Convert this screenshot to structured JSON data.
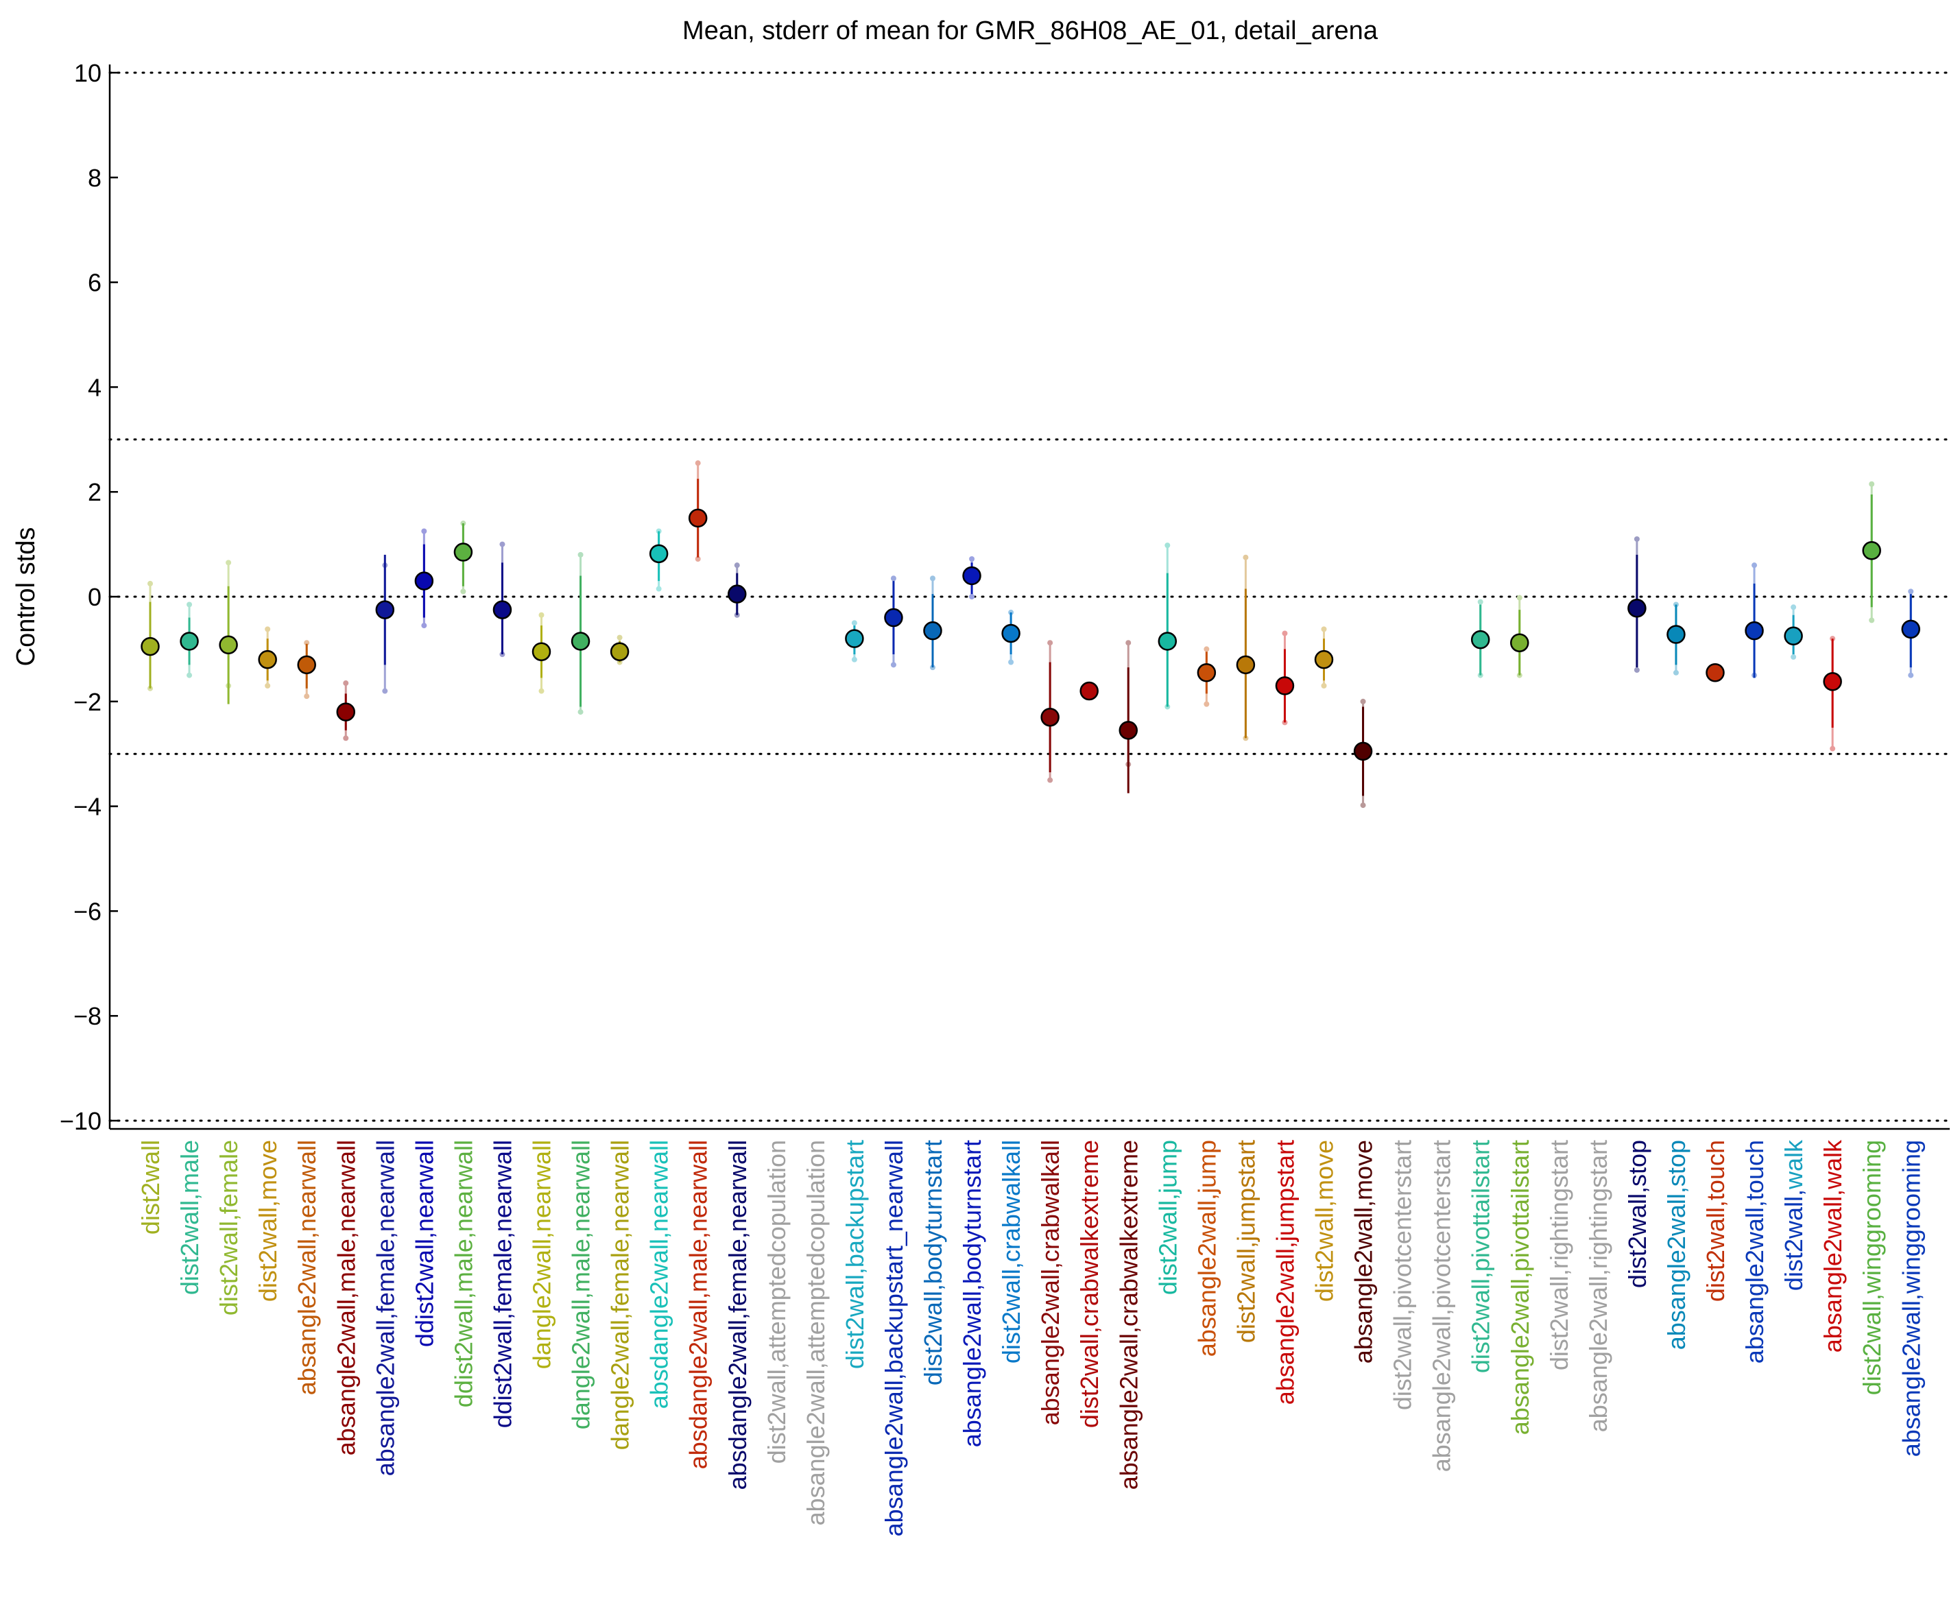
{
  "chart_data": {
    "type": "scatter",
    "title": "Mean, stderr of mean for GMR_86H08_AE_01, detail_arena",
    "ylabel": "Control stds",
    "xlabel": "",
    "ylim": [
      -10,
      10
    ],
    "yticks": [
      -10,
      -8,
      -6,
      -4,
      -2,
      0,
      2,
      4,
      6,
      8,
      10
    ],
    "ytick_labels": [
      "−10",
      "−8",
      "−6",
      "−4",
      "−2",
      "0",
      "2",
      "4",
      "6",
      "8",
      "10"
    ],
    "reference_lines": [
      10,
      3,
      0,
      -3,
      -10
    ],
    "grid": false,
    "categories": [
      {
        "segments": [
          [
            "dist2wall",
            "#a0b020"
          ]
        ]
      },
      {
        "segments": [
          [
            "dist2wall,male",
            "#30b890"
          ]
        ]
      },
      {
        "segments": [
          [
            "dist2wall,female",
            "#90b830"
          ]
        ]
      },
      {
        "segments": [
          [
            "dist2wall,move",
            "#c09010"
          ]
        ]
      },
      {
        "segments": [
          [
            "absangle2wall,nearwall",
            "#c05a08"
          ]
        ]
      },
      {
        "segments": [
          [
            "absangle2wall,male,nearwall",
            "#8a0000"
          ]
        ]
      },
      {
        "segments": [
          [
            "absangle2wall,female,nearwall",
            "#101898"
          ]
        ]
      },
      {
        "segments": [
          [
            "ddist2wall,nearwall",
            "#0808b0"
          ]
        ]
      },
      {
        "segments": [
          [
            "ddist2wall,male,nearwall",
            "#5cb040"
          ]
        ]
      },
      {
        "segments": [
          [
            "ddist2wall,female,nearwall",
            "#0a0a88"
          ]
        ]
      },
      {
        "segments": [
          [
            "dangle2wall,nearwall",
            "#b0b010"
          ]
        ]
      },
      {
        "segments": [
          [
            "dangle2wall,male,nearwall",
            "#40b060"
          ]
        ]
      },
      {
        "segments": [
          [
            "dangle2wall,female,nearwall",
            "#a8a010"
          ]
        ]
      },
      {
        "segments": [
          [
            "absdangle2wall,nearwall",
            "#18c0b8"
          ]
        ]
      },
      {
        "segments": [
          [
            "absdangle2wall,male,nearwall",
            "#c02808"
          ]
        ]
      },
      {
        "segments": [
          [
            "absdangle2wall,female,nearwall",
            "#08086a"
          ]
        ]
      },
      {
        "segments": [
          [
            "dist2wall,attemptedcopulation",
            "#a0a0a0"
          ]
        ]
      },
      {
        "segments": [
          [
            "absangle2wall,attemptedcopulation",
            "#a0a0a0"
          ]
        ]
      },
      {
        "segments": [
          [
            "dist2wall,backupstart",
            "#18a8c0"
          ]
        ]
      },
      {
        "segments": [
          [
            "absangle2wall,backupstart_nearwall",
            "#0828b0"
          ]
        ]
      },
      {
        "segments": [
          [
            "dist2wall,bodyturnstart",
            "#0868b8"
          ]
        ]
      },
      {
        "segments": [
          [
            "absangle2wall,bodyturnstart",
            "#0818b8"
          ]
        ]
      },
      {
        "segments": [
          [
            "dist2wall,crabwalkall",
            "#0878c8"
          ]
        ]
      },
      {
        "segments": [
          [
            "absangle2wall,crabwalkall",
            "#880808"
          ]
        ]
      },
      {
        "segments": [
          [
            "dist2wall,crabwalkextreme",
            "#b00808"
          ]
        ]
      },
      {
        "segments": [
          [
            "absangle2wall,crabwalkextreme",
            "#6a0000"
          ]
        ]
      },
      {
        "segments": [
          [
            "dist2wall,jump",
            "#18b8a0"
          ]
        ]
      },
      {
        "segments": [
          [
            "absangle2wall,jump",
            "#c85008"
          ]
        ]
      },
      {
        "segments": [
          [
            "dist2wall,jumpstart",
            "#b87808"
          ]
        ]
      },
      {
        "segments": [
          [
            "absangle2wall,jumpstart",
            "#c80808"
          ]
        ]
      },
      {
        "segments": [
          [
            "dist2wall,move",
            "#c09010"
          ]
        ]
      },
      {
        "segments": [
          [
            "absangle2wall,move",
            "#500000"
          ]
        ]
      },
      {
        "segments": [
          [
            "dist2wall,pivotcenterstart",
            "#a0a0a0"
          ]
        ]
      },
      {
        "segments": [
          [
            "absangle2wall,pivotcenterstart",
            "#a0a0a0"
          ]
        ]
      },
      {
        "segments": [
          [
            "dist2wall,pivottailstart",
            "#30b890"
          ]
        ]
      },
      {
        "segments": [
          [
            "absangle2wall,pivottailstart",
            "#78b030"
          ]
        ]
      },
      {
        "segments": [
          [
            "dist2wall,rightingstart",
            "#a0a0a0"
          ]
        ]
      },
      {
        "segments": [
          [
            "absangle2wall,rightingstart",
            "#a0a0a0"
          ]
        ]
      },
      {
        "segments": [
          [
            "dist2wall,",
            "#08086a"
          ],
          [
            "stop",
            "#08086a"
          ]
        ]
      },
      {
        "segments": [
          [
            "absangle2wall,stop",
            "#0888b8"
          ]
        ]
      },
      {
        "segments": [
          [
            "dist2wall,",
            "#c03008"
          ],
          [
            "touch",
            "#c03008"
          ]
        ]
      },
      {
        "segments": [
          [
            "absangle2wall,touch",
            "#0838b8"
          ]
        ]
      },
      {
        "segments": [
          [
            "dist2wall,",
            "#0838b8"
          ],
          [
            "walk",
            "#18a0c0"
          ]
        ]
      },
      {
        "segments": [
          [
            "absangle2wall,",
            "#c80808"
          ],
          [
            "walk",
            "#c80808"
          ]
        ]
      },
      {
        "segments": [
          [
            "dist2wall,",
            "#58b040"
          ],
          [
            "winggrooming",
            "#58b040"
          ]
        ]
      },
      {
        "segments": [
          [
            "absangle2wall,winggrooming",
            "#0838b8"
          ]
        ]
      }
    ],
    "points": [
      {
        "mean": -0.95,
        "lo": -1.75,
        "hi": -0.1,
        "dlo": -1.75,
        "dhi": 0.25,
        "color": "#a0b020"
      },
      {
        "mean": -0.85,
        "lo": -1.3,
        "hi": -0.4,
        "dlo": -1.5,
        "dhi": -0.15,
        "color": "#30b890"
      },
      {
        "mean": -0.92,
        "lo": -2.05,
        "hi": 0.2,
        "dlo": -1.7,
        "dhi": 0.65,
        "color": "#90b830"
      },
      {
        "mean": -1.2,
        "lo": -1.6,
        "hi": -0.8,
        "dlo": -1.7,
        "dhi": -0.62,
        "color": "#c09010"
      },
      {
        "mean": -1.3,
        "lo": -1.75,
        "hi": -0.9,
        "dlo": -1.9,
        "dhi": -0.88,
        "color": "#c05a08"
      },
      {
        "mean": -2.2,
        "lo": -2.55,
        "hi": -1.85,
        "dlo": -2.7,
        "dhi": -1.65,
        "color": "#8a0000"
      },
      {
        "mean": -0.25,
        "lo": -1.3,
        "hi": 0.8,
        "dlo": -1.8,
        "dhi": 0.6,
        "color": "#101898"
      },
      {
        "mean": 0.3,
        "lo": -0.4,
        "hi": 1.0,
        "dlo": -0.55,
        "dhi": 1.25,
        "color": "#0808b0"
      },
      {
        "mean": 0.85,
        "lo": 0.2,
        "hi": 1.4,
        "dlo": 0.1,
        "dhi": 1.4,
        "color": "#5cb040"
      },
      {
        "mean": -0.25,
        "lo": -1.1,
        "hi": 0.65,
        "dlo": -1.1,
        "dhi": 1.0,
        "color": "#0a0a88"
      },
      {
        "mean": -1.05,
        "lo": -1.55,
        "hi": -0.55,
        "dlo": -1.8,
        "dhi": -0.35,
        "color": "#b0b010"
      },
      {
        "mean": -0.85,
        "lo": -2.1,
        "hi": 0.4,
        "dlo": -2.2,
        "dhi": 0.8,
        "color": "#40b060"
      },
      {
        "mean": -1.05,
        "lo": -1.25,
        "hi": -0.85,
        "dlo": -1.25,
        "dhi": -0.78,
        "color": "#a8a010"
      },
      {
        "mean": 0.82,
        "lo": 0.3,
        "hi": 1.25,
        "dlo": 0.15,
        "dhi": 1.25,
        "color": "#18c0b8"
      },
      {
        "mean": 1.5,
        "lo": 0.75,
        "hi": 2.25,
        "dlo": 0.72,
        "dhi": 2.55,
        "color": "#c02808"
      },
      {
        "mean": 0.05,
        "lo": -0.35,
        "hi": 0.45,
        "dlo": -0.35,
        "dhi": 0.6,
        "color": "#08086a"
      },
      null,
      null,
      {
        "mean": -0.8,
        "lo": -1.1,
        "hi": -0.55,
        "dlo": -1.2,
        "dhi": -0.5,
        "color": "#18a8c0"
      },
      {
        "mean": -0.4,
        "lo": -1.1,
        "hi": 0.3,
        "dlo": -1.3,
        "dhi": 0.35,
        "color": "#0828b0"
      },
      {
        "mean": -0.65,
        "lo": -1.35,
        "hi": 0.05,
        "dlo": -1.35,
        "dhi": 0.35,
        "color": "#0868b8"
      },
      {
        "mean": 0.4,
        "lo": 0.05,
        "hi": 0.65,
        "dlo": 0.0,
        "dhi": 0.72,
        "color": "#0818b8"
      },
      {
        "mean": -0.7,
        "lo": -1.1,
        "hi": -0.3,
        "dlo": -1.25,
        "dhi": -0.3,
        "color": "#0878c8"
      },
      {
        "mean": -2.3,
        "lo": -3.35,
        "hi": -1.25,
        "dlo": -3.5,
        "dhi": -0.88,
        "color": "#880808"
      },
      {
        "mean": -1.8,
        "lo": -1.9,
        "hi": -1.7,
        "dlo": -1.9,
        "dhi": -1.7,
        "color": "#b00808"
      },
      {
        "mean": -2.55,
        "lo": -3.75,
        "hi": -1.35,
        "dlo": -3.2,
        "dhi": -0.88,
        "color": "#6a0000"
      },
      {
        "mean": -0.85,
        "lo": -2.1,
        "hi": 0.45,
        "dlo": -2.1,
        "dhi": 0.98,
        "color": "#18b8a0"
      },
      {
        "mean": -1.45,
        "lo": -1.85,
        "hi": -1.05,
        "dlo": -2.05,
        "dhi": -1.0,
        "color": "#c85008"
      },
      {
        "mean": -1.3,
        "lo": -2.7,
        "hi": 0.15,
        "dlo": -2.7,
        "dhi": 0.75,
        "color": "#b87808"
      },
      {
        "mean": -1.7,
        "lo": -2.4,
        "hi": -1.0,
        "dlo": -2.4,
        "dhi": -0.7,
        "color": "#c80808"
      },
      {
        "mean": -1.2,
        "lo": -1.6,
        "hi": -0.8,
        "dlo": -1.7,
        "dhi": -0.62,
        "color": "#c09010"
      },
      {
        "mean": -2.95,
        "lo": -3.8,
        "hi": -2.1,
        "dlo": -3.98,
        "dhi": -2.0,
        "color": "#500000"
      },
      null,
      null,
      {
        "mean": -0.82,
        "lo": -1.5,
        "hi": -0.15,
        "dlo": -1.5,
        "dhi": -0.1,
        "color": "#30b890"
      },
      {
        "mean": -0.88,
        "lo": -1.5,
        "hi": -0.25,
        "dlo": -1.5,
        "dhi": -0.02,
        "color": "#78b030"
      },
      null,
      null,
      {
        "mean": -0.22,
        "lo": -1.35,
        "hi": 0.8,
        "dlo": -1.4,
        "dhi": 1.1,
        "color": "#08086a"
      },
      {
        "mean": -0.72,
        "lo": -1.3,
        "hi": -0.15,
        "dlo": -1.45,
        "dhi": -0.15,
        "color": "#0888b8"
      },
      {
        "mean": -1.45,
        "lo": -1.45,
        "hi": -1.45,
        "dlo": -1.45,
        "dhi": -1.45,
        "color": "#c03008"
      },
      {
        "mean": -0.65,
        "lo": -1.55,
        "hi": 0.25,
        "dlo": -1.5,
        "dhi": 0.6,
        "color": "#0838b8"
      },
      {
        "mean": -0.75,
        "lo": -1.1,
        "hi": -0.35,
        "dlo": -1.15,
        "dhi": -0.2,
        "color": "#18a0c0"
      },
      {
        "mean": -1.62,
        "lo": -2.5,
        "hi": -0.8,
        "dlo": -2.9,
        "dhi": -0.8,
        "color": "#c80808"
      },
      {
        "mean": 0.88,
        "lo": -0.2,
        "hi": 1.95,
        "dlo": -0.45,
        "dhi": 2.15,
        "color": "#58b040"
      },
      {
        "mean": -0.62,
        "lo": -1.35,
        "hi": 0.05,
        "dlo": -1.5,
        "dhi": 0.1,
        "color": "#0838b8"
      }
    ]
  }
}
